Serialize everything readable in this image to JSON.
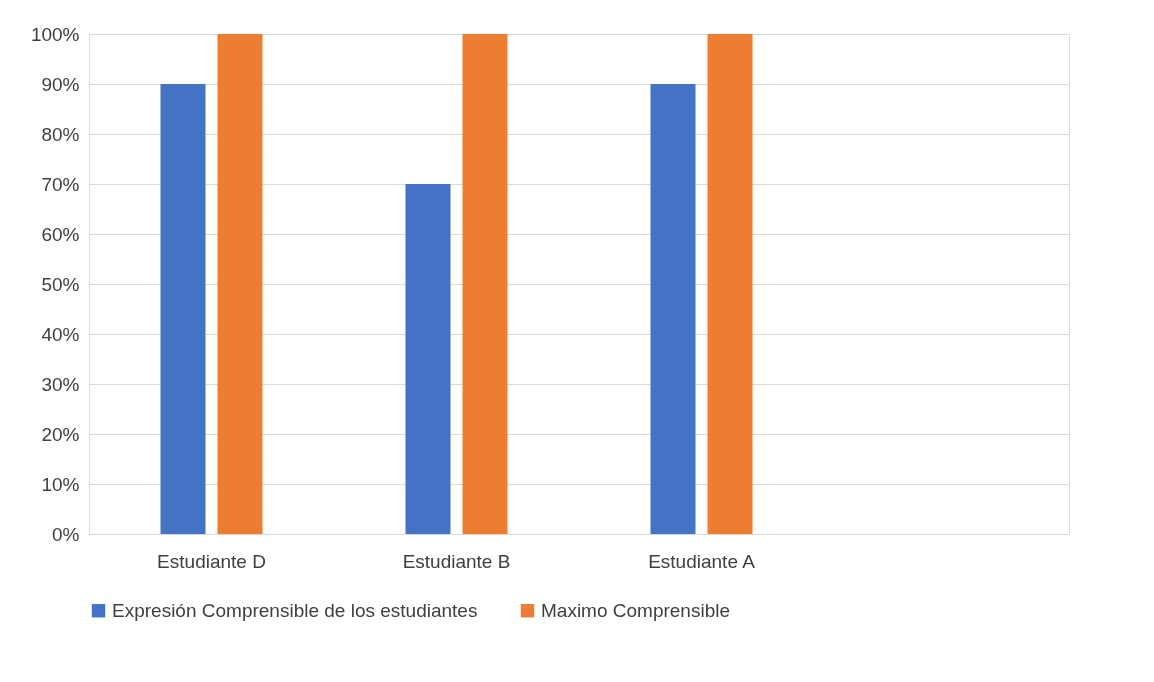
{
  "chart_data": {
    "type": "bar",
    "categories": [
      "Estudiante D",
      "Estudiante B",
      "Estudiante A",
      null
    ],
    "series": [
      {
        "name": "Expresión Comprensible de los estudiantes",
        "color": "#4472c4",
        "values": [
          90,
          70,
          90,
          null
        ]
      },
      {
        "name": "Maximo Comprensible",
        "color": "#ed7d31",
        "values": [
          100,
          100,
          100,
          null
        ]
      }
    ],
    "ylim": [
      0,
      100
    ],
    "yticks": [
      {
        "value": 0,
        "label": "0%"
      },
      {
        "value": 10,
        "label": "10%"
      },
      {
        "value": 20,
        "label": "20%"
      },
      {
        "value": 30,
        "label": "30%"
      },
      {
        "value": 40,
        "label": "40%"
      },
      {
        "value": 50,
        "label": "50%"
      },
      {
        "value": 60,
        "label": "60%"
      },
      {
        "value": 70,
        "label": "70%"
      },
      {
        "value": 80,
        "label": "80%"
      },
      {
        "value": 90,
        "label": "90%"
      },
      {
        "value": 100,
        "label": "100%"
      }
    ],
    "grid": "y",
    "legend": "bottom"
  }
}
